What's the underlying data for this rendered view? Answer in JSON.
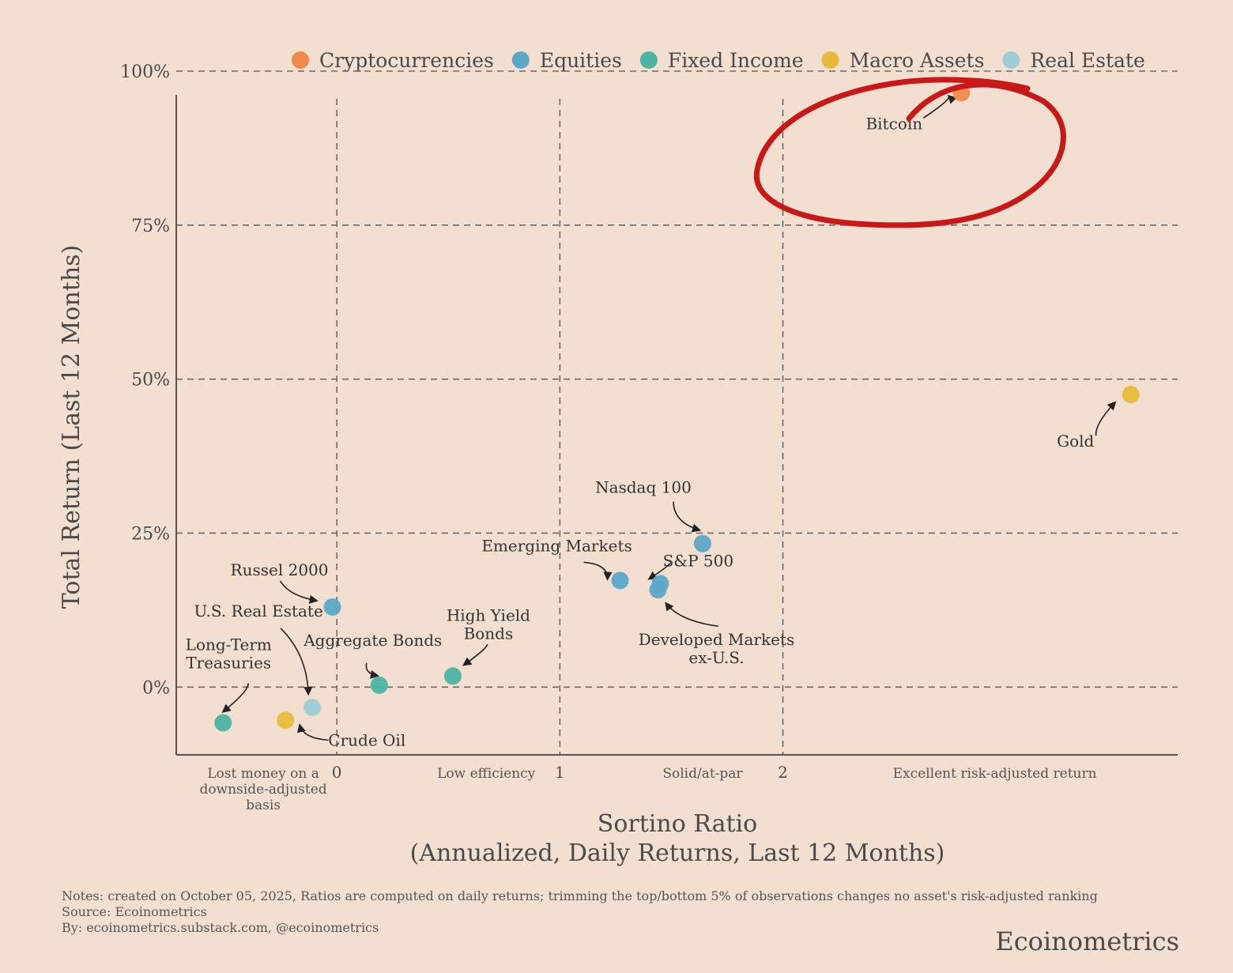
{
  "chart_data": {
    "type": "scatter",
    "title": "",
    "xlabel": [
      "Sortino Ratio",
      "(Annualized, Daily Returns, Last 12 Months)"
    ],
    "ylabel": "Total Return (Last 12 Months)",
    "xlim": [
      -0.72,
      3.77
    ],
    "ylim": [
      -11,
      100
    ],
    "x_ticks": [
      0,
      1,
      2
    ],
    "y_ticks": [
      0,
      25,
      50,
      75,
      100
    ],
    "y_tick_labels": [
      "0%",
      "25%",
      "50%",
      "75%",
      "100%"
    ],
    "grid": true,
    "legend_position": "top",
    "zone_labels": [
      {
        "x": -0.33,
        "lines": [
          "Lost money on a",
          "downside-adjusted",
          "basis"
        ]
      },
      {
        "x": 0.67,
        "lines": [
          "Low efficiency"
        ]
      },
      {
        "x": 1.64,
        "lines": [
          "Solid/at-par"
        ]
      },
      {
        "x": 2.95,
        "lines": [
          "Excellent risk-adjusted return"
        ]
      }
    ],
    "series": [
      {
        "name": "Cryptocurrencies",
        "color": "#f08a4b",
        "points": [
          {
            "label": "Bitcoin",
            "x": 2.8,
            "y": 96.5
          }
        ]
      },
      {
        "name": "Equities",
        "color": "#5ba8c8",
        "points": [
          {
            "label": "Nasdaq 100",
            "x": 1.64,
            "y": 23.3
          },
          {
            "label": "S&P 500",
            "x": 1.45,
            "y": 16.8
          },
          {
            "label": "Developed Markets ex-U.S.",
            "x": 1.44,
            "y": 15.8
          },
          {
            "label": "Emerging Markets",
            "x": 1.27,
            "y": 17.3
          },
          {
            "label": "Russel 2000",
            "x": -0.02,
            "y": 13.0
          }
        ]
      },
      {
        "name": "Fixed Income",
        "color": "#4db3a2",
        "points": [
          {
            "label": "High Yield Bonds",
            "x": 0.52,
            "y": 1.8
          },
          {
            "label": "Aggregate Bonds",
            "x": 0.19,
            "y": 0.3
          },
          {
            "label": "Long-Term Treasuries",
            "x": -0.51,
            "y": -5.8
          }
        ]
      },
      {
        "name": "Macro Assets",
        "color": "#e8b93a",
        "points": [
          {
            "label": "Gold",
            "x": 3.56,
            "y": 47.5
          },
          {
            "label": "Crude Oil",
            "x": -0.23,
            "y": -5.4
          }
        ]
      },
      {
        "name": "Real Estate",
        "color": "#9fcbd4",
        "points": [
          {
            "label": "U.S. Real Estate",
            "x": -0.11,
            "y": -3.3
          }
        ]
      }
    ]
  },
  "notes": {
    "line1": "Notes: created on October 05, 2025, Ratios are computed on daily returns; trimming the top/bottom 5% of observations changes no asset's risk-adjusted ranking",
    "line2": "Source: Ecoinometrics",
    "line3": "By: ecoinometrics.substack.com, @ecoinometrics"
  },
  "brand": "Ecoinometrics"
}
